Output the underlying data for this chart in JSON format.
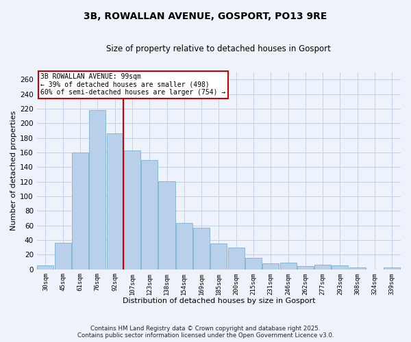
{
  "title": "3B, ROWALLAN AVENUE, GOSPORT, PO13 9RE",
  "subtitle": "Size of property relative to detached houses in Gosport",
  "xlabel": "Distribution of detached houses by size in Gosport",
  "ylabel": "Number of detached properties",
  "bar_labels": [
    "30sqm",
    "45sqm",
    "61sqm",
    "76sqm",
    "92sqm",
    "107sqm",
    "123sqm",
    "138sqm",
    "154sqm",
    "169sqm",
    "185sqm",
    "200sqm",
    "215sqm",
    "231sqm",
    "246sqm",
    "262sqm",
    "277sqm",
    "293sqm",
    "308sqm",
    "324sqm",
    "339sqm"
  ],
  "bar_values": [
    5,
    36,
    160,
    218,
    186,
    163,
    150,
    121,
    63,
    57,
    35,
    30,
    16,
    8,
    9,
    4,
    6,
    5,
    3,
    0,
    3
  ],
  "bar_color": "#b8d0ea",
  "bar_edgecolor": "#7aafd4",
  "vline_x": 4.5,
  "vline_color": "#cc0000",
  "ylim": [
    0,
    270
  ],
  "yticks": [
    0,
    20,
    40,
    60,
    80,
    100,
    120,
    140,
    160,
    180,
    200,
    220,
    240,
    260
  ],
  "annotation_title": "3B ROWALLAN AVENUE: 99sqm",
  "annotation_line1": "← 39% of detached houses are smaller (498)",
  "annotation_line2": "60% of semi-detached houses are larger (754) →",
  "box_facecolor": "#ffffff",
  "box_edgecolor": "#cc0000",
  "footnote1": "Contains HM Land Registry data © Crown copyright and database right 2025.",
  "footnote2": "Contains public sector information licensed under the Open Government Licence v3.0.",
  "bg_color": "#eef2fa",
  "grid_color": "#c5cfe8"
}
